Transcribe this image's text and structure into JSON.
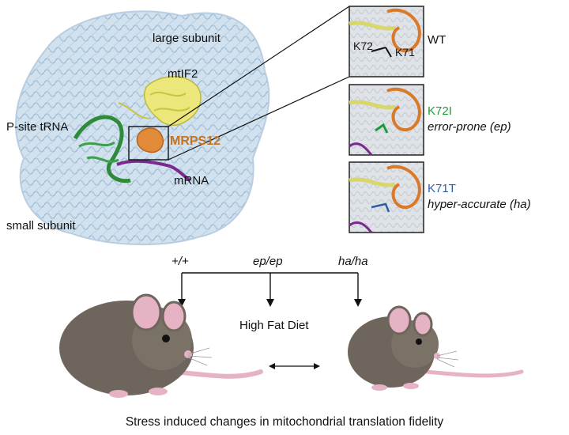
{
  "structure": {
    "labels": {
      "large_subunit": "large subunit",
      "mtif2": "mtIF2",
      "p_site_trna": "P-site tRNA",
      "mrps12": "MRPS12",
      "mrna": "mRNA",
      "small_subunit": "small subunit"
    }
  },
  "insets": [
    {
      "title": "WT",
      "title_color": "#111111",
      "subtitle": "",
      "residues": [
        "K72",
        "K71"
      ]
    },
    {
      "title": "K72I",
      "title_color": "#1f9a3a",
      "subtitle": "error-prone (ep)",
      "residues": []
    },
    {
      "title": "K71T",
      "title_color": "#2a5fa8",
      "subtitle": "hyper-accurate (ha)",
      "residues": []
    }
  ],
  "genotypes": [
    "+/+",
    "ep/ep",
    "ha/ha"
  ],
  "diet_label": "High Fat Diet",
  "caption": "Stress induced changes in mitochondrial translation fidelity",
  "colors": {
    "ribosome": "#a9c4dc",
    "trna": "#2e8b3a",
    "mtif2": "#e3e070",
    "mrps12": "#d9792a",
    "mrna": "#7a2a8c",
    "mouse_body": "#6e655c",
    "mouse_pink": "#e6b3c4"
  }
}
